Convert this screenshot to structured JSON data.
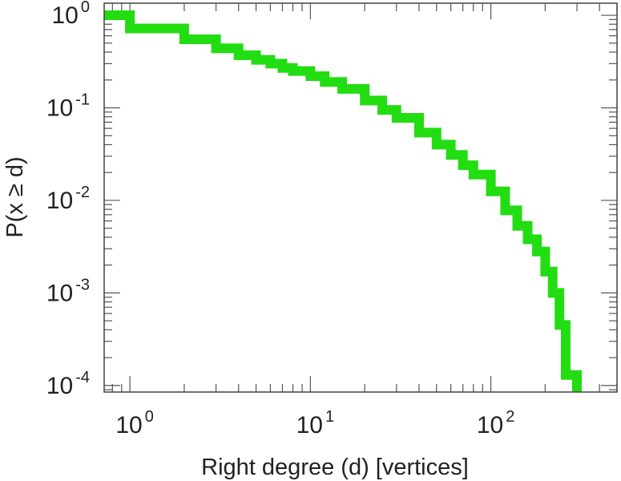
{
  "chart_data": {
    "type": "line",
    "step": true,
    "title": "",
    "xlabel": "Right degree (d) [vertices]",
    "ylabel": "P(x ≥ d)",
    "xscale": "log",
    "yscale": "log",
    "xlim": [
      0.72,
      500
    ],
    "ylim": [
      8.5e-05,
      1.35
    ],
    "x_ticks": [
      {
        "base": "10",
        "exp": "0",
        "value": 1
      },
      {
        "base": "10",
        "exp": "1",
        "value": 10
      },
      {
        "base": "10",
        "exp": "2",
        "value": 100
      }
    ],
    "y_ticks": [
      {
        "base": "10",
        "exp": "0",
        "value": 1
      },
      {
        "base": "10",
        "exp": "-1",
        "value": 0.1
      },
      {
        "base": "10",
        "exp": "-2",
        "value": 0.01
      },
      {
        "base": "10",
        "exp": "-3",
        "value": 0.001
      },
      {
        "base": "10",
        "exp": "-4",
        "value": 0.0001
      }
    ],
    "grid": false,
    "legend": "none",
    "series": [
      {
        "color": "#22dd11",
        "x": [
          0.72,
          1,
          2,
          3,
          4,
          5,
          6,
          7,
          8,
          10,
          12,
          15,
          20,
          25,
          30,
          40,
          50,
          60,
          70,
          80,
          100,
          120,
          140,
          160,
          180,
          200,
          220,
          240,
          260,
          300
        ],
        "y": [
          1,
          0.72,
          0.55,
          0.44,
          0.37,
          0.33,
          0.3,
          0.27,
          0.25,
          0.22,
          0.19,
          0.16,
          0.12,
          0.095,
          0.078,
          0.054,
          0.04,
          0.031,
          0.024,
          0.019,
          0.0125,
          0.0078,
          0.0053,
          0.0038,
          0.0028,
          0.0017,
          0.001,
          0.00045,
          0.00013,
          8.5e-05
        ]
      }
    ]
  }
}
